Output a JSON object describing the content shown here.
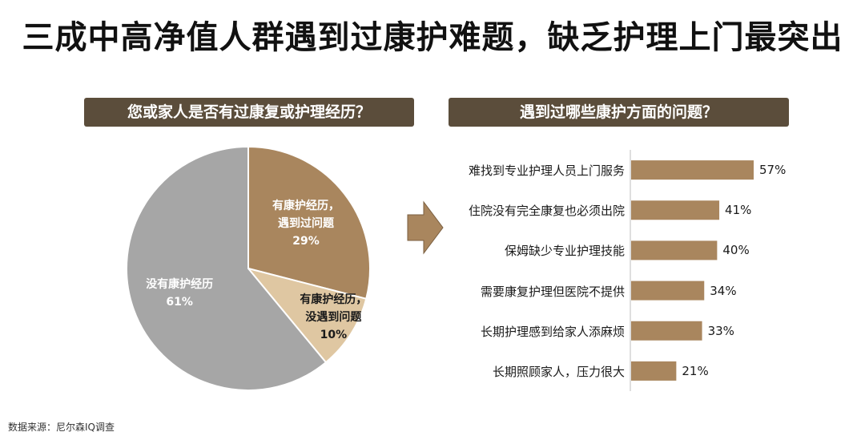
{
  "title": "三成中高净值人群遇到过康护难题，缺乏护理上门最突出",
  "source": "数据来源：尼尔森IQ调查",
  "colors": {
    "banner": "#5b4d3b",
    "brown": "#a9865e",
    "tan": "#dfc7a2",
    "gray": "#a6a6a6"
  },
  "arrow_icon": "right-arrow-icon",
  "chart_data": [
    {
      "type": "pie",
      "title": "您或家人是否有过康复或护理经历？",
      "slices": [
        {
          "label_line1": "有康护经历，",
          "label_line2": "遇到过问题",
          "value": 29,
          "value_label": "29%",
          "color": "#a9865e"
        },
        {
          "label_line1": "有康护经历，",
          "label_line2": "没遇到问题",
          "value": 10,
          "value_label": "10%",
          "color": "#dfc7a2"
        },
        {
          "label_line1": "没有康护经历",
          "label_line2": "",
          "value": 61,
          "value_label": "61%",
          "color": "#a6a6a6"
        }
      ]
    },
    {
      "type": "bar",
      "orientation": "horizontal",
      "title": "遇到过哪些康护方面的问题？",
      "color": "#a9865e",
      "categories": [
        "难找到专业护理人员上门服务",
        "住院没有完全康复也必须出院",
        "保姆缺少专业护理技能",
        "需要康复护理但医院不提供",
        "长期护理感到给家人添麻烦",
        "长期照顾家人，压力很大"
      ],
      "values": [
        57,
        41,
        40,
        34,
        33,
        21
      ],
      "value_labels": [
        "57%",
        "41%",
        "40%",
        "34%",
        "33%",
        "21%"
      ],
      "grid": false
    }
  ]
}
